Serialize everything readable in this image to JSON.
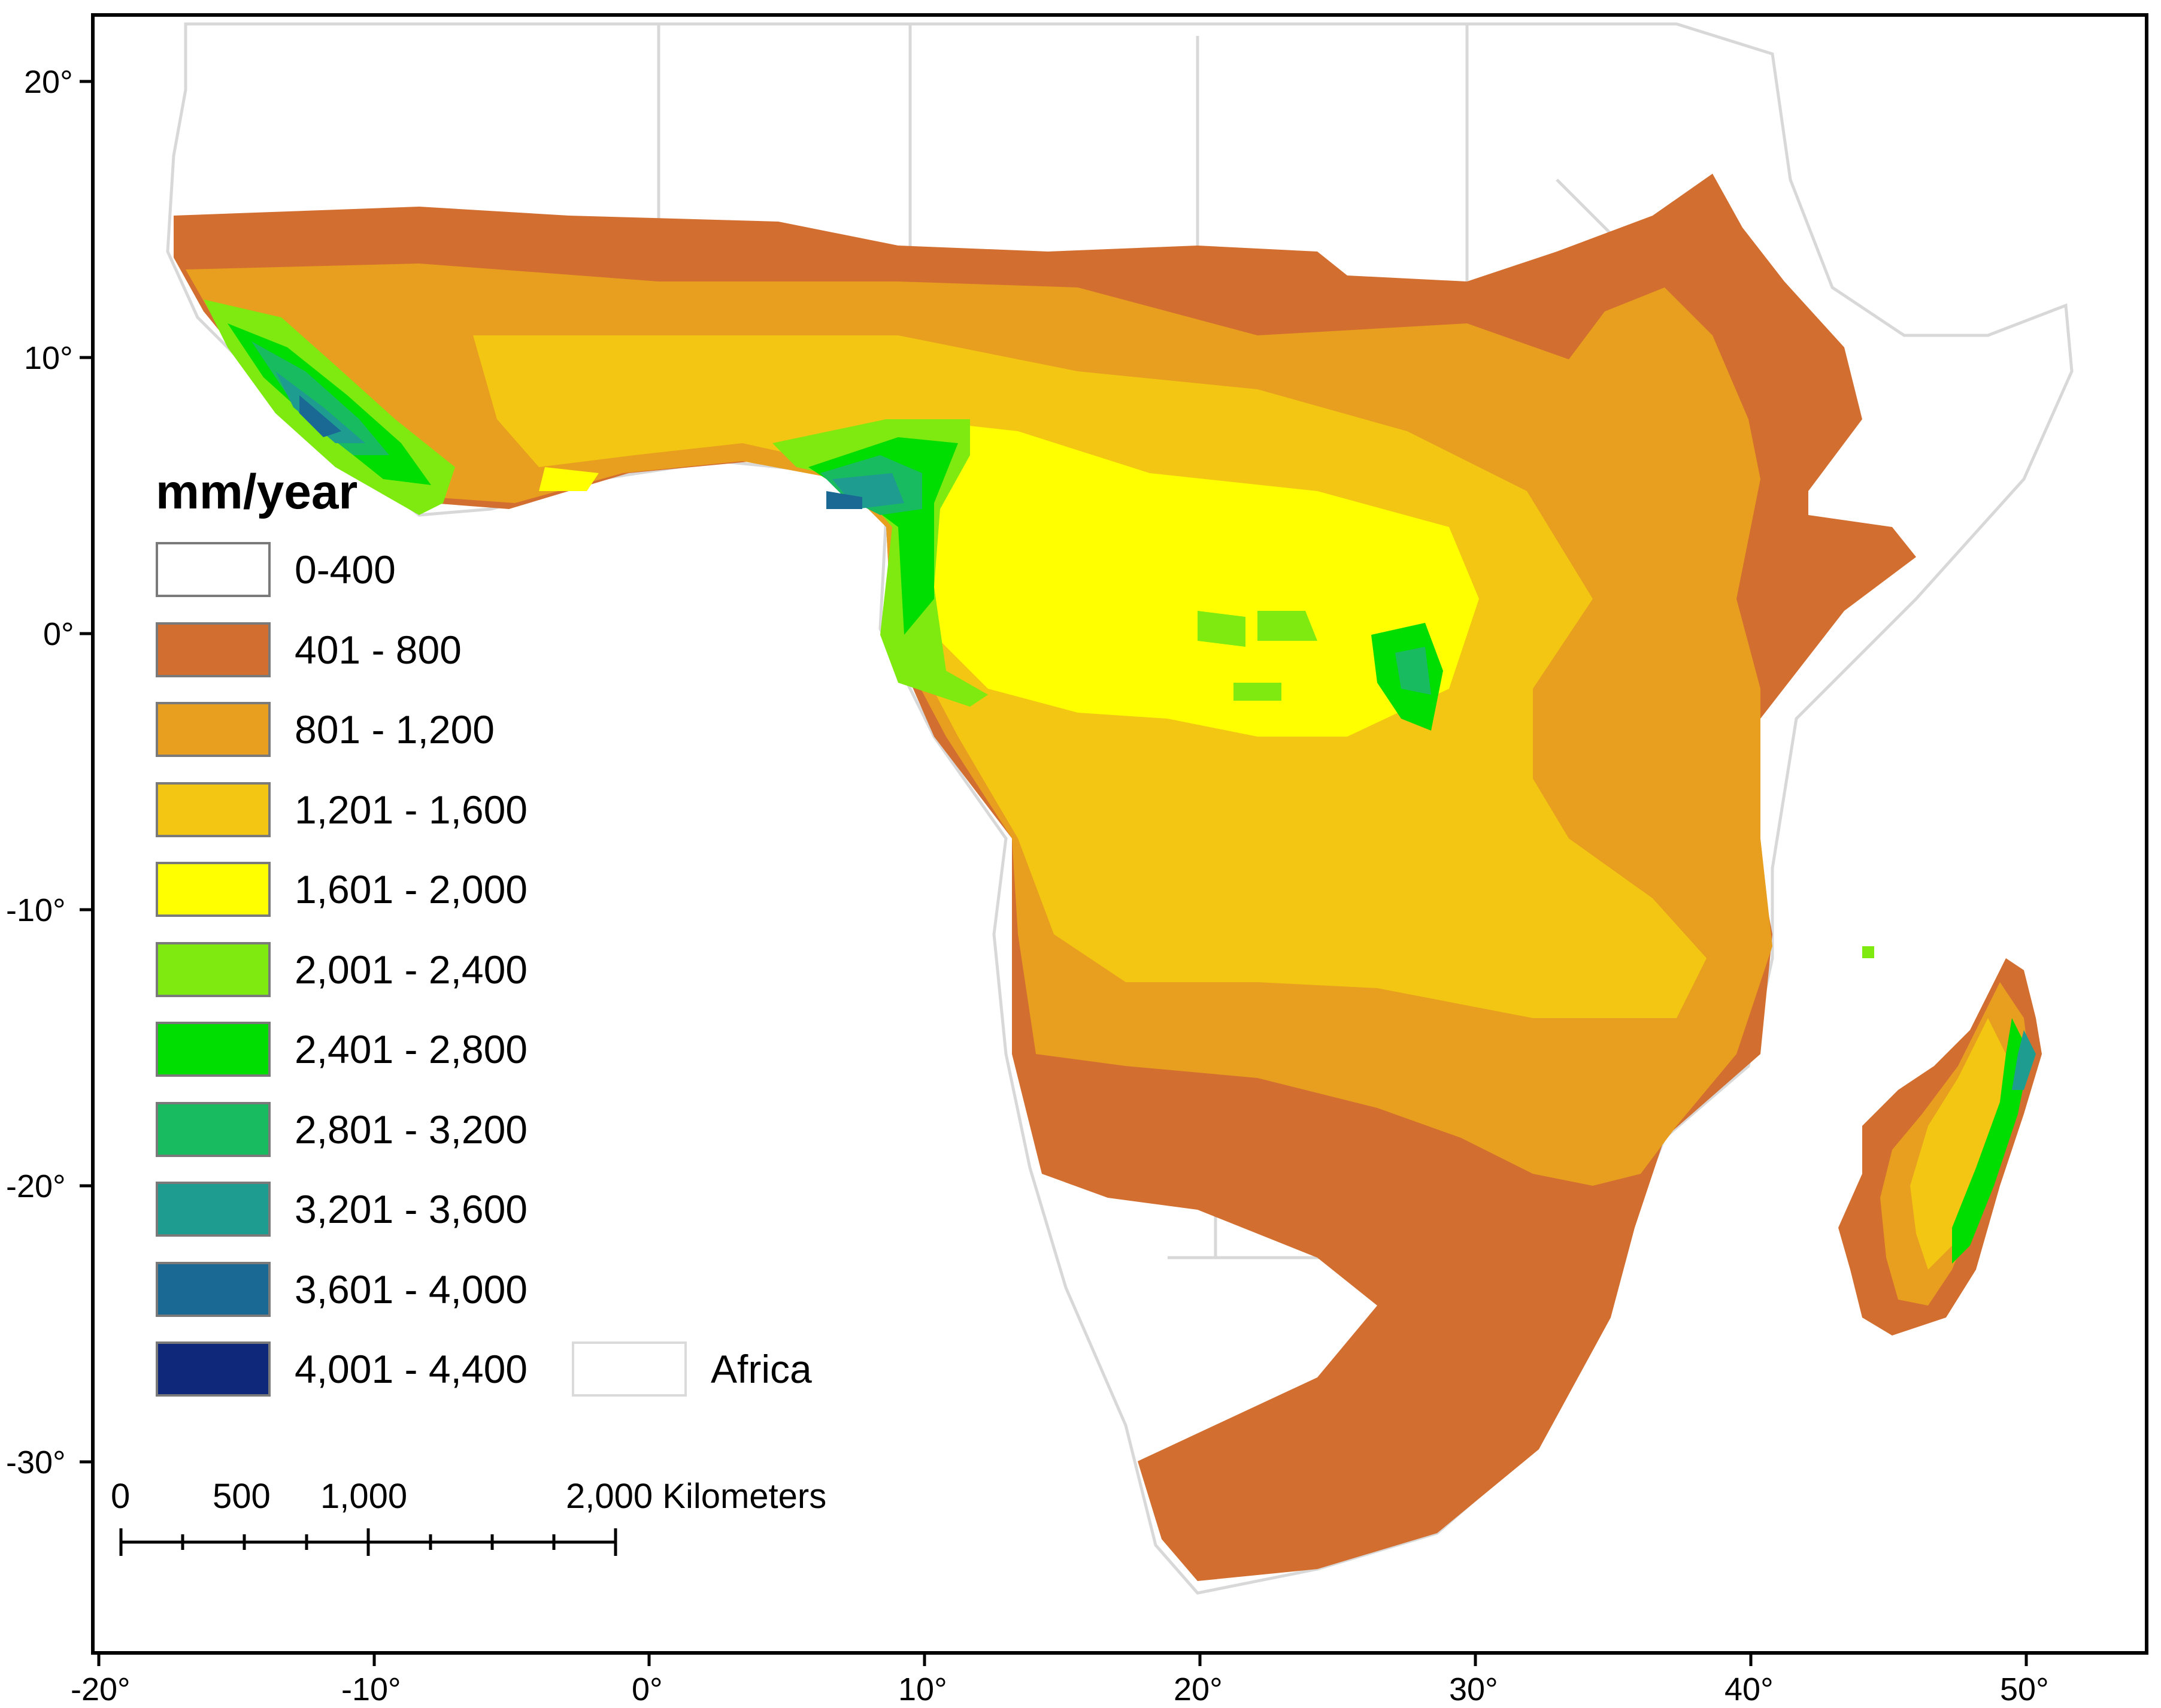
{
  "legend": {
    "title": "mm/year",
    "classes": [
      {
        "label": "0-400",
        "color": "#FFFFFF"
      },
      {
        "label": "401 - 800",
        "color": "#D26E30"
      },
      {
        "label": "801 - 1,200",
        "color": "#E89E1E"
      },
      {
        "label": "1,201 - 1,600",
        "color": "#F2C612"
      },
      {
        "label": "1,601 - 2,000",
        "color": "#FFFF00"
      },
      {
        "label": "2,001 - 2,400",
        "color": "#7FEA10"
      },
      {
        "label": "2,401 - 2,800",
        "color": "#00DD00"
      },
      {
        "label": "2,801 - 3,200",
        "color": "#18BB60"
      },
      {
        "label": "3,201 - 3,600",
        "color": "#1E9C90"
      },
      {
        "label": "3,601 - 4,000",
        "color": "#1A6894"
      },
      {
        "label": "4,001 - 4,400",
        "color": "#10287A"
      }
    ],
    "boundary": {
      "label": "Africa",
      "color": "#FFFFFF"
    }
  },
  "scale_bar": {
    "labels": [
      "0",
      "500",
      "1,000",
      "2,000 Kilometers"
    ]
  },
  "axes": {
    "x_ticks": [
      "-20°",
      "-10°",
      "0°",
      "10°",
      "20°",
      "30°",
      "40°",
      "50°"
    ],
    "y_ticks": [
      "20°",
      "10°",
      "0°",
      "-10°",
      "-20°",
      "-30°"
    ]
  },
  "colors": {
    "frame": "#000000",
    "country_borders": "#D8D8D8",
    "land_base": "#FFFFFF"
  }
}
